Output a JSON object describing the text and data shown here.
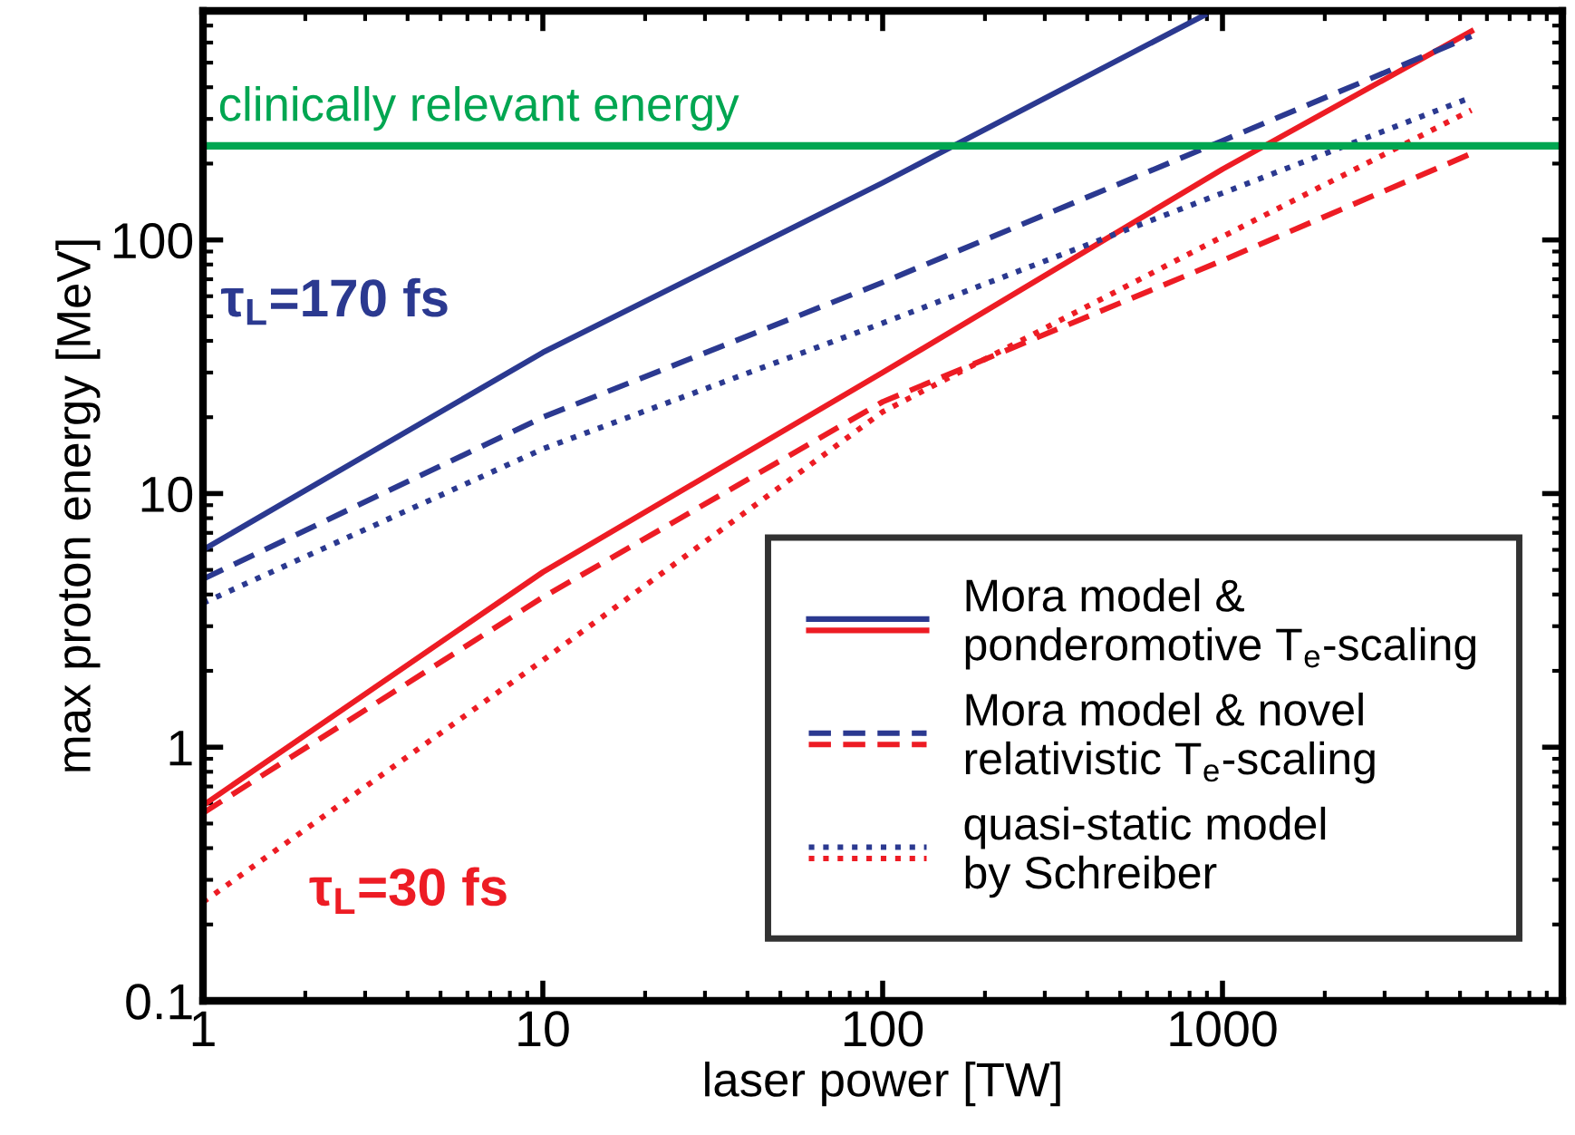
{
  "chart_data": {
    "type": "line",
    "xlabel": "laser power [TW]",
    "ylabel": "max proton energy [MeV]",
    "log": "xy",
    "xlim": [
      1,
      10000
    ],
    "ylim": [
      0.1,
      800
    ],
    "xticks": [
      1,
      10,
      100,
      1000
    ],
    "yticks": [
      0.1,
      1,
      10,
      100
    ],
    "grid": false,
    "legend": "bottom right",
    "marker": "none",
    "series": [
      {
        "name": "Mora model &\nponderomotive T$_{e}$-scaling",
        "color": "#2b3990",
        "line_style": "solid",
        "x": [
          1,
          10,
          100,
          885
        ],
        "values": [
          6.0,
          36,
          168,
          770
        ]
      },
      {
        "color": "#ed1c24",
        "line_style": "solid",
        "x": [
          1,
          10,
          100,
          1000,
          5400
        ],
        "values": [
          0.59,
          4.9,
          30,
          190,
          665
        ]
      },
      {
        "name": "Mora model & novel\nrelativistic T$_{e}$-scaling",
        "color": "#2b3990",
        "line_style": "dashed",
        "x": [
          1,
          10,
          100,
          1000,
          5400
        ],
        "values": [
          4.6,
          20,
          68,
          246,
          636
        ]
      },
      {
        "color": "#ed1c24",
        "line_style": "dashed",
        "x": [
          1,
          10,
          100,
          1000,
          5400
        ],
        "values": [
          0.55,
          3.9,
          23,
          83,
          219
        ]
      },
      {
        "name": "quasi-static model\nby Schreiber",
        "color": "#2b3990",
        "line_style": "dotted",
        "x": [
          1,
          10,
          100,
          1000,
          5400
        ],
        "values": [
          3.7,
          15,
          47,
          153,
          365
        ]
      },
      {
        "color": "#ed1c24",
        "line_style": "dotted",
        "x": [
          1,
          10,
          100,
          1000,
          5400
        ],
        "values": [
          0.245,
          2.2,
          21,
          103,
          325
        ]
      }
    ],
    "ref_lines": [
      {
        "axis": "y",
        "value": 235,
        "label": "clinically relevant energy",
        "color": "#00a651",
        "line_style": "solid"
      }
    ],
    "annotations": [
      "τ$_{L}$=170 fs",
      "τ$_{L}$=30 fs"
    ]
  }
}
